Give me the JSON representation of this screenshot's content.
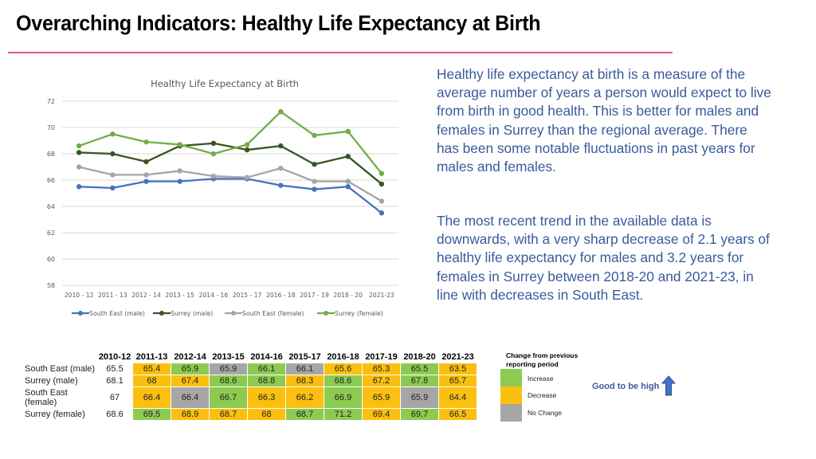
{
  "header": {
    "title": "Overarching Indicators: Healthy Life Expectancy at Birth",
    "rule_color": "#e8509a"
  },
  "chart_data": {
    "type": "line",
    "title": "Healthy Life Expectancy at Birth",
    "xlabel": "",
    "ylabel": "",
    "categories": [
      "2010 - 12",
      "2011 - 13",
      "2012 - 14",
      "2013 - 15",
      "2014 - 16",
      "2015 - 17",
      "2016 - 18",
      "2017 - 19",
      "2018 - 20",
      "2021-23"
    ],
    "ylim": [
      58,
      72
    ],
    "yticks": [
      58,
      60,
      62,
      64,
      66,
      68,
      70,
      72
    ],
    "grid": true,
    "legend_position": "bottom",
    "series": [
      {
        "name": "South East (male)",
        "color": "#4472c4",
        "values": [
          65.5,
          65.4,
          65.9,
          65.9,
          66.1,
          66.1,
          65.6,
          65.3,
          65.5,
          63.5
        ]
      },
      {
        "name": "Surrey (male)",
        "color": "#375623",
        "values": [
          68.1,
          68,
          67.4,
          68.6,
          68.8,
          68.3,
          68.6,
          67.2,
          67.8,
          65.7
        ]
      },
      {
        "name": "South East (female)",
        "color": "#a5a5a5",
        "values": [
          67,
          66.4,
          66.4,
          66.7,
          66.3,
          66.2,
          66.9,
          65.9,
          65.9,
          64.4
        ]
      },
      {
        "name": "Surrey (female)",
        "color": "#70ad47",
        "values": [
          68.6,
          69.5,
          68.9,
          68.7,
          68,
          68.7,
          71.2,
          69.4,
          69.7,
          66.5
        ]
      }
    ]
  },
  "description": {
    "para1": "Healthy life expectancy at birth is a measure of the average number of years a person would expect to live from birth in good health. This is better for males and females in Surrey than the regional average. There has been some notable fluctuations in past years for males and females.",
    "para2": "The most recent trend in the available data is downwards, with a very sharp decrease of 2.1 years of healthy life expectancy for males and 3.2 years for females in Surrey between 2018-20  and 2021-23, in line with decreases in South East."
  },
  "table": {
    "columns": [
      "2010-12",
      "2011-13",
      "2012-14",
      "2013-15",
      "2014-16",
      "2015-17",
      "2016-18",
      "2017-19",
      "2018-20",
      "2021-23"
    ],
    "rows": [
      {
        "label": "South East (male)",
        "values": [
          "65.5",
          "65.4",
          "65.9",
          "65.9",
          "66.1",
          "66.1",
          "65.6",
          "65.3",
          "65.5",
          "63.5"
        ],
        "status": [
          "none",
          "dec",
          "inc",
          "nc",
          "inc",
          "nc",
          "dec",
          "dec",
          "inc",
          "dec"
        ]
      },
      {
        "label": "Surrey (male)",
        "values": [
          "68.1",
          "68",
          "67.4",
          "68.6",
          "68.8",
          "68.3",
          "68.6",
          "67.2",
          "67.8",
          "65.7"
        ],
        "status": [
          "none",
          "dec",
          "dec",
          "inc",
          "inc",
          "dec",
          "inc",
          "dec",
          "inc",
          "dec"
        ]
      },
      {
        "label": "South East (female)",
        "values": [
          "67",
          "66.4",
          "66.4",
          "66.7",
          "66.3",
          "66.2",
          "66.9",
          "65.9",
          "65.9",
          "64.4"
        ],
        "status": [
          "none",
          "dec",
          "nc",
          "inc",
          "dec",
          "dec",
          "inc",
          "dec",
          "nc",
          "dec"
        ]
      },
      {
        "label": "Surrey (female)",
        "values": [
          "68.6",
          "69.5",
          "68.9",
          "68.7",
          "68",
          "68.7",
          "71.2",
          "69.4",
          "69.7",
          "66.5"
        ],
        "status": [
          "none",
          "inc",
          "dec",
          "dec",
          "dec",
          "inc",
          "inc",
          "dec",
          "inc",
          "dec"
        ]
      }
    ]
  },
  "legend": {
    "title": "Change from previous reporting period",
    "items": [
      {
        "label": "Increase",
        "color": "#8ccb50"
      },
      {
        "label": "Decrease",
        "color": "#fbbf10"
      },
      {
        "label": "No Change",
        "color": "#a6a6a6"
      }
    ],
    "polarity_label": "Good to be high",
    "polarity_icon": "arrow-up-icon",
    "polarity_color": "#4472c4"
  }
}
